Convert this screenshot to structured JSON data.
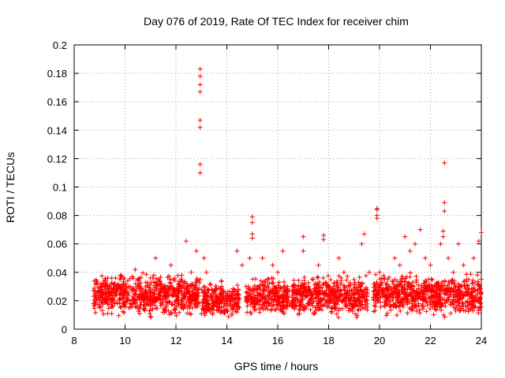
{
  "chart_data": {
    "type": "scatter",
    "title": "Day 076 of 2019, Rate Of TEC Index for receiver chim",
    "xlabel": "GPS time / hours",
    "ylabel": "ROTI / TECUs",
    "xlim": [
      8,
      24
    ],
    "ylim": [
      0,
      0.2
    ],
    "xticks": [
      "8",
      "10",
      "12",
      "14",
      "16",
      "18",
      "20",
      "22",
      "24"
    ],
    "yticks": [
      "0",
      "0.02",
      "0.04",
      "0.06",
      "0.08",
      "0.1",
      "0.12",
      "0.14",
      "0.16",
      "0.18",
      "0.2"
    ],
    "grid": true,
    "marker": "+",
    "color": "#ff0000",
    "series": [
      {
        "name": "ROTI",
        "x": [
          8.8,
          9.0,
          9.2,
          9.4,
          9.6,
          9.8,
          10.0,
          10.2,
          10.4,
          10.6,
          10.8,
          11.0,
          11.2,
          11.4,
          11.6,
          11.8,
          12.0,
          12.2,
          12.4,
          12.6,
          12.8,
          12.95,
          12.95,
          12.95,
          12.95,
          12.95,
          12.95,
          12.95,
          12.95,
          12.95,
          13.1,
          13.2,
          13.4,
          13.6,
          13.8,
          14.0,
          14.2,
          14.4,
          14.6,
          14.9,
          15.0,
          15.0,
          15.0,
          15.0,
          15.2,
          15.4,
          15.6,
          15.8,
          16.0,
          16.2,
          16.6,
          16.8,
          17.0,
          17.0,
          17.2,
          17.4,
          17.6,
          17.8,
          17.8,
          18.0,
          18.2,
          18.4,
          18.6,
          18.8,
          19.0,
          19.2,
          19.3,
          19.4,
          19.6,
          19.9,
          19.9,
          19.9,
          19.9,
          20.0,
          20.2,
          20.4,
          20.6,
          20.8,
          21.0,
          21.2,
          21.4,
          21.6,
          21.8,
          22.0,
          22.2,
          22.4,
          22.5,
          22.5,
          22.55,
          22.55,
          22.55,
          22.7,
          22.9,
          23.1,
          23.3,
          23.5,
          23.7,
          23.9,
          24.0
        ],
        "y": [
          0.02,
          0.025,
          0.03,
          0.022,
          0.018,
          0.035,
          0.028,
          0.03,
          0.042,
          0.025,
          0.03,
          0.036,
          0.05,
          0.032,
          0.028,
          0.045,
          0.02,
          0.03,
          0.062,
          0.04,
          0.055,
          0.183,
          0.178,
          0.172,
          0.167,
          0.147,
          0.142,
          0.116,
          0.11,
          0.035,
          0.05,
          0.04,
          0.025,
          0.022,
          0.03,
          0.02,
          0.01,
          0.055,
          0.045,
          0.05,
          0.079,
          0.075,
          0.067,
          0.064,
          0.03,
          0.05,
          0.035,
          0.045,
          0.04,
          0.055,
          0.02,
          0.03,
          0.065,
          0.055,
          0.03,
          0.035,
          0.045,
          0.066,
          0.063,
          0.025,
          0.03,
          0.05,
          0.04,
          0.03,
          0.035,
          0.025,
          0.06,
          0.067,
          0.04,
          0.085,
          0.084,
          0.08,
          0.078,
          0.04,
          0.035,
          0.03,
          0.05,
          0.045,
          0.065,
          0.055,
          0.06,
          0.07,
          0.05,
          0.045,
          0.03,
          0.06,
          0.069,
          0.065,
          0.117,
          0.089,
          0.083,
          0.05,
          0.04,
          0.06,
          0.045,
          0.035,
          0.05,
          0.062,
          0.068
        ]
      }
    ]
  }
}
